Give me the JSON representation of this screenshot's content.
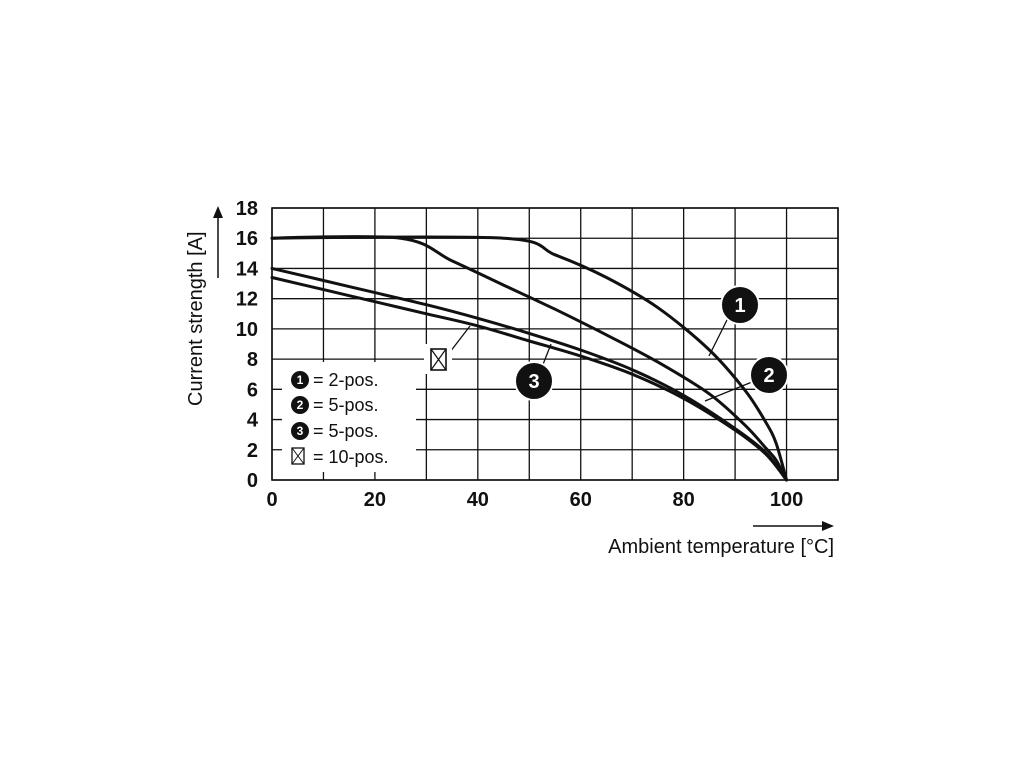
{
  "chart_data": {
    "type": "line",
    "xlabel": "Ambient temperature [°C]",
    "ylabel": "Current strength [A]",
    "xlim": [
      0,
      110
    ],
    "ylim": [
      0,
      18
    ],
    "x_ticks": [
      "0",
      "20",
      "40",
      "60",
      "80",
      "100"
    ],
    "y_ticks": [
      "0",
      "2",
      "4",
      "6",
      "8",
      "10",
      "12",
      "14",
      "16",
      "18"
    ],
    "grid": true,
    "series": [
      {
        "name": "1",
        "x": [
          0,
          45,
          55,
          65,
          75,
          85,
          92,
          96,
          98,
          100
        ],
        "y": [
          16,
          16,
          14.9,
          13.4,
          11.4,
          8.6,
          5.9,
          3.8,
          2.4,
          0
        ]
      },
      {
        "name": "2",
        "x": [
          0,
          25,
          35,
          45,
          55,
          65,
          75,
          85,
          92,
          96,
          98,
          100
        ],
        "y": [
          16,
          16,
          14.5,
          12.9,
          11.3,
          9.6,
          7.8,
          5.7,
          3.6,
          2.1,
          1.3,
          0
        ]
      },
      {
        "name": "3",
        "x": [
          0,
          10,
          20,
          30,
          40,
          50,
          60,
          70,
          80,
          90,
          96,
          100
        ],
        "y": [
          14,
          13.2,
          12.4,
          11.6,
          10.7,
          9.7,
          8.6,
          7.3,
          5.6,
          3.4,
          1.8,
          0
        ]
      },
      {
        "name": "10-pos.",
        "x": [
          0,
          10,
          20,
          30,
          40,
          50,
          60,
          70,
          80,
          90,
          96,
          100
        ],
        "y": [
          13.4,
          12.6,
          11.8,
          11.0,
          10.2,
          9.2,
          8.2,
          7.0,
          5.4,
          3.3,
          1.7,
          0
        ]
      }
    ],
    "curve_labels": [
      "1",
      "2",
      "3"
    ],
    "legend": [
      {
        "marker": "1",
        "text": "= 2-pos."
      },
      {
        "marker": "2",
        "text": "= 5-pos."
      },
      {
        "marker": "3",
        "text": "= 5-pos."
      },
      {
        "marker": "10-pos-symbol",
        "text": "= 10-pos."
      }
    ],
    "legend_position": "bottom-left",
    "colors": {
      "lines": "#111111",
      "background": "#ffffff"
    }
  }
}
